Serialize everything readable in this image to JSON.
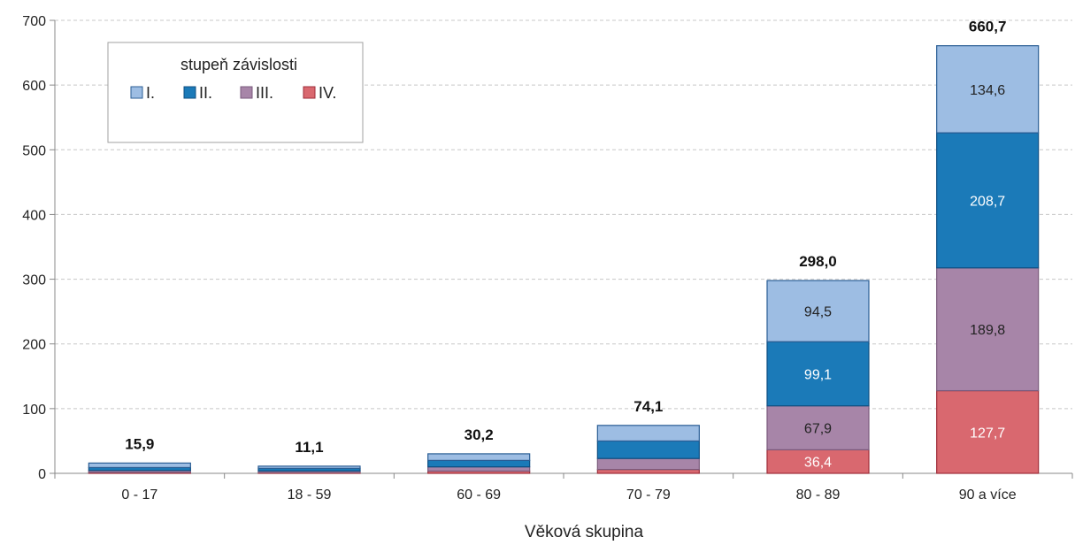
{
  "chart_data": {
    "type": "bar",
    "stacked": true,
    "categories": [
      "0 - 17",
      "18 - 59",
      "60 - 69",
      "70 - 79",
      "80 - 89",
      "90 a více"
    ],
    "series": [
      {
        "name": "IV.",
        "color": "#d9686f",
        "values": [
          1.5,
          1.2,
          3.5,
          6.0,
          36.4,
          127.7
        ]
      },
      {
        "name": "III.",
        "color": "#a785a8",
        "values": [
          3.0,
          2.5,
          6.5,
          17.0,
          67.9,
          189.8
        ]
      },
      {
        "name": "II.",
        "color": "#1b7ab8",
        "values": [
          4.5,
          4.0,
          10.0,
          27.0,
          99.1,
          208.7
        ]
      },
      {
        "name": "I.",
        "color": "#9dbde3",
        "values": [
          6.9,
          3.4,
          10.2,
          24.1,
          94.5,
          134.6
        ]
      }
    ],
    "segment_labels": [
      [
        "",
        "",
        "",
        "",
        "36,4",
        "127,7"
      ],
      [
        "",
        "",
        "",
        "",
        "67,9",
        "189,8"
      ],
      [
        "",
        "",
        "",
        "",
        "99,1",
        "208,7"
      ],
      [
        "",
        "",
        "",
        "",
        "94,5",
        "134,6"
      ]
    ],
    "totals": [
      "15,9",
      "11,1",
      "30,2",
      "74,1",
      "298,0",
      "660,7"
    ],
    "ylim": [
      0,
      700
    ],
    "yticks": [
      "0",
      "100",
      "200",
      "300",
      "400",
      "500",
      "600",
      "700"
    ],
    "xlabel": "Věková skupina",
    "ylabel": "",
    "grid": true,
    "legend": {
      "title": "stupeň závislosti",
      "placement": "top-left",
      "entries": [
        "I.",
        "II.",
        "III.",
        "IV."
      ]
    }
  }
}
